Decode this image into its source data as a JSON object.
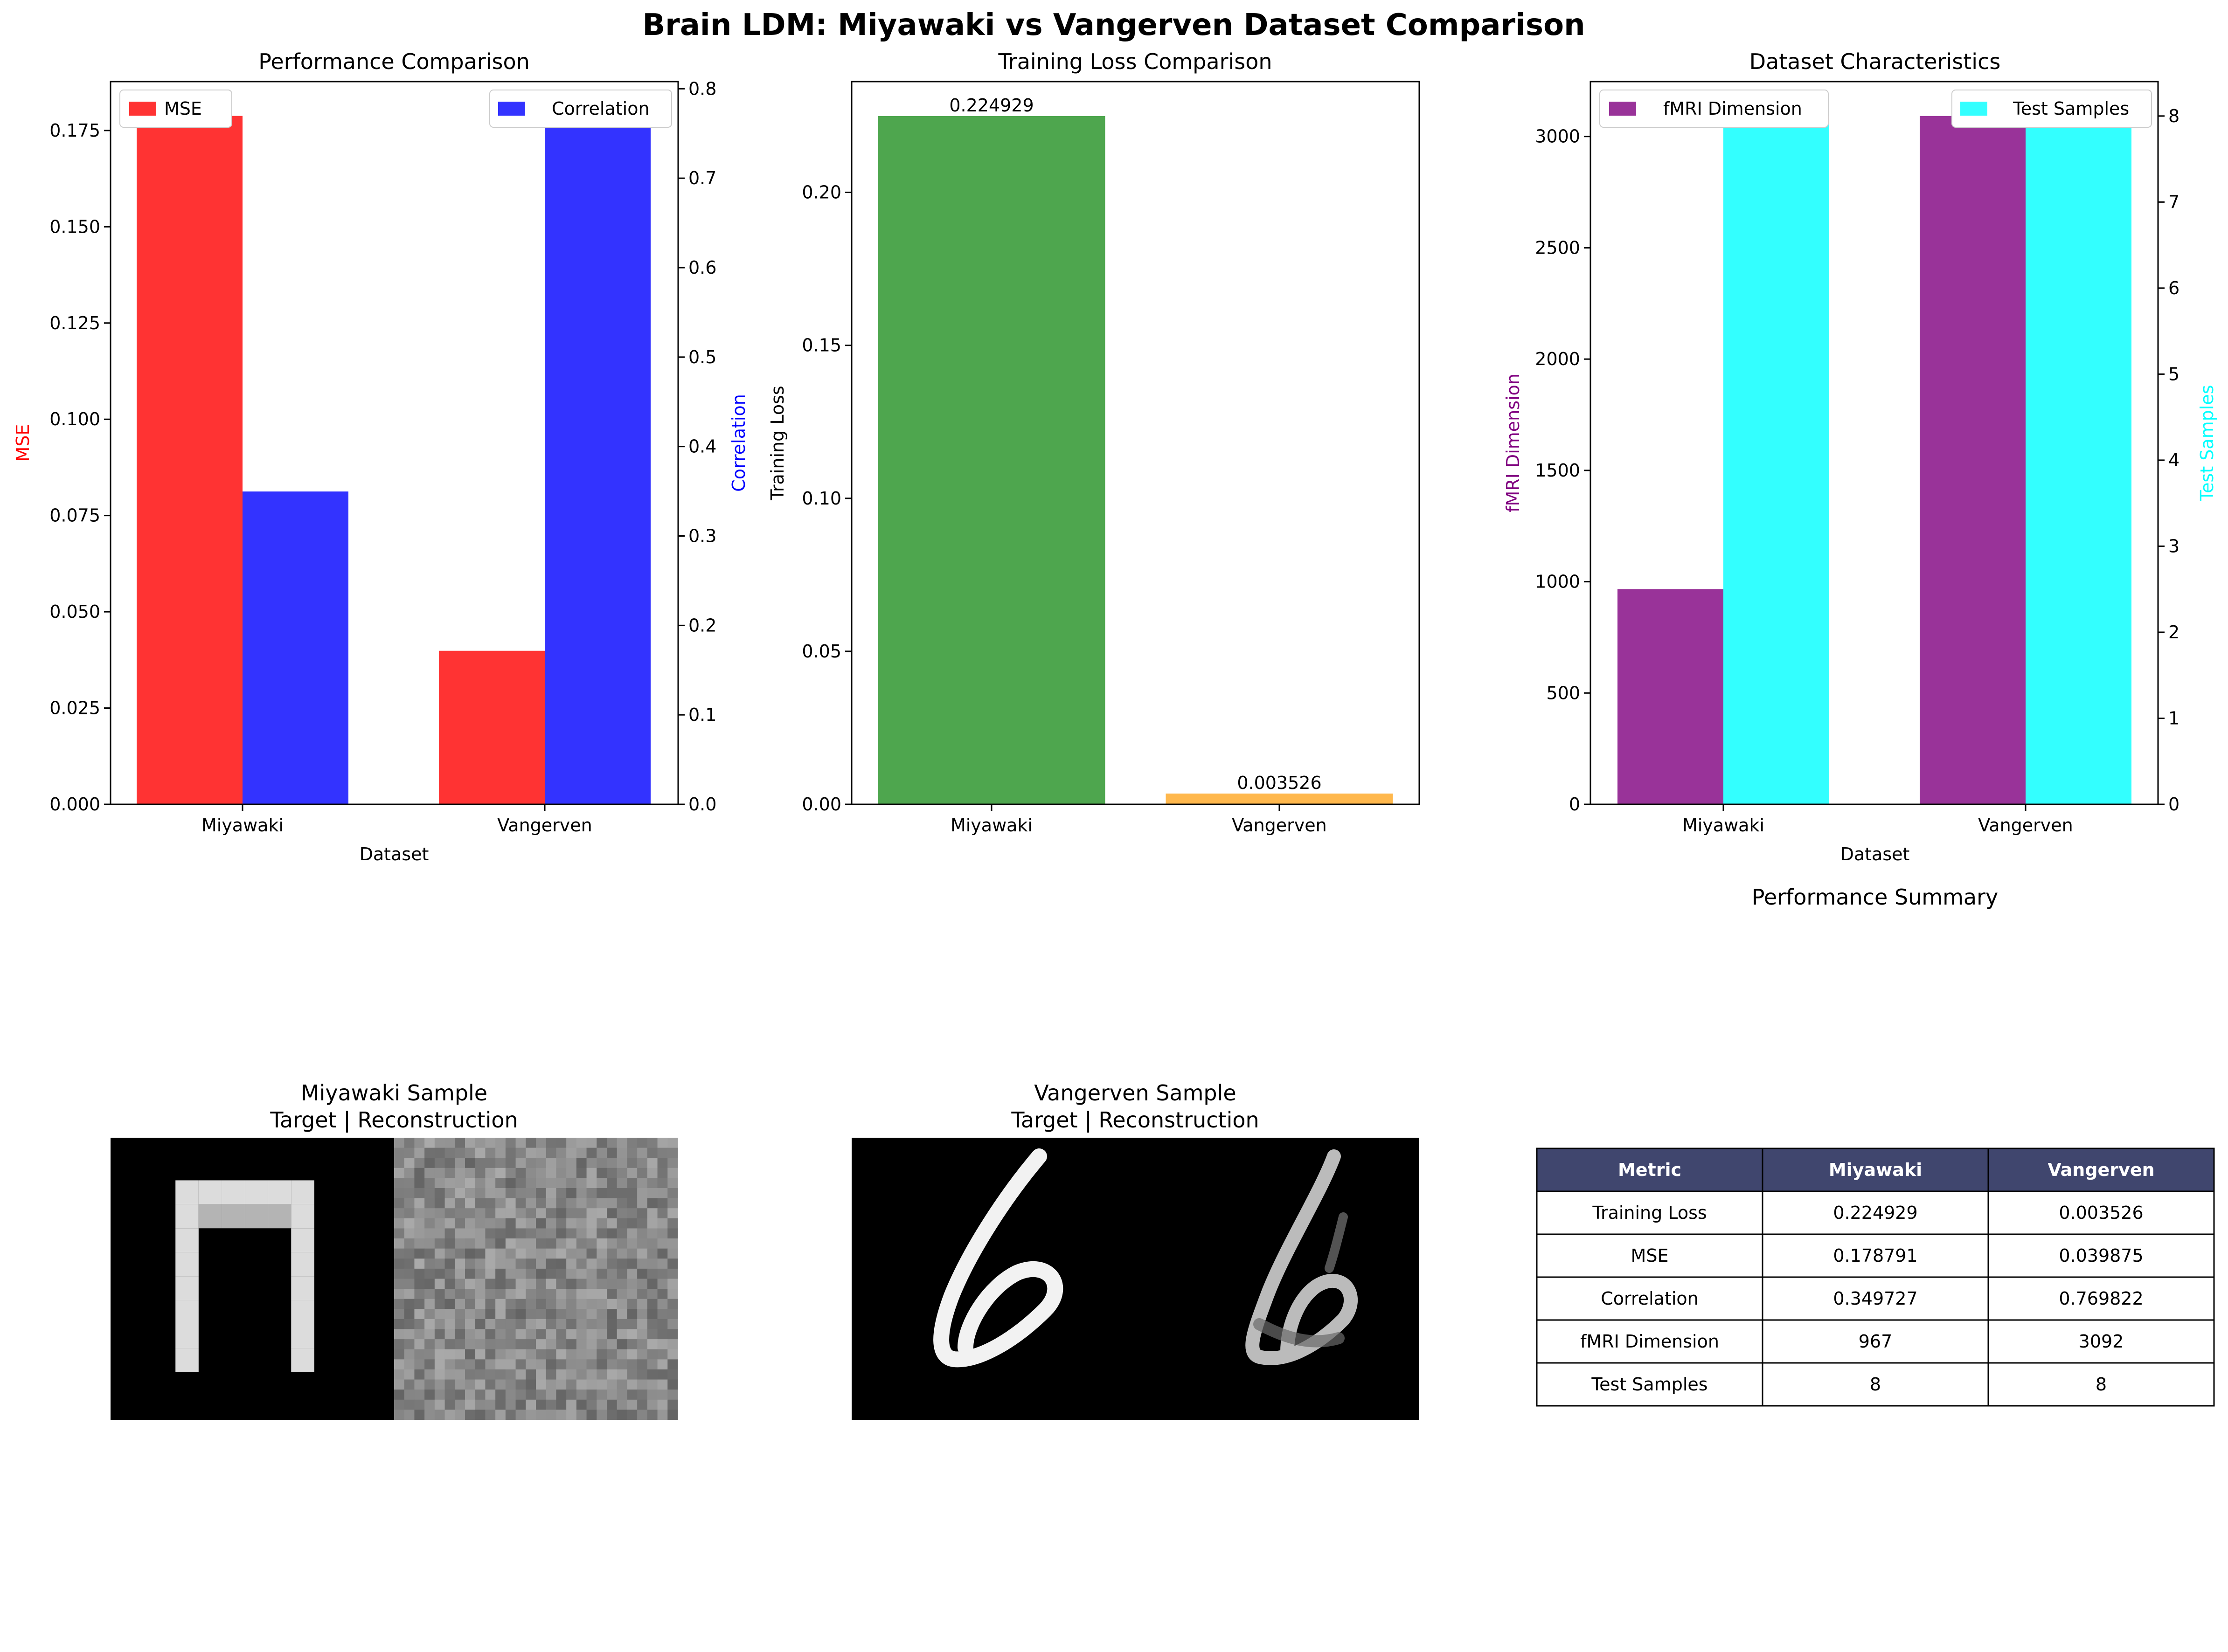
{
  "figure": {
    "title": "Brain LDM: Miyawaki vs Vangerven Dataset Comparison"
  },
  "chart_data": [
    {
      "type": "bar",
      "title": "Performance Comparison",
      "xlabel": "Dataset",
      "categories": [
        "Miyawaki",
        "Vangerven"
      ],
      "series": [
        {
          "name": "MSE",
          "axis": "left",
          "values": [
            0.178791,
            0.039875
          ],
          "color": "#ff3333"
        },
        {
          "name": "Correlation",
          "axis": "right",
          "values": [
            0.349727,
            0.769822
          ],
          "color": "#3333ff"
        }
      ],
      "ylabel_left": "MSE",
      "ylabel_right": "Correlation",
      "ylim_left": [
        0,
        0.1877
      ],
      "ylim_right": [
        0,
        0.808
      ],
      "yticks_left": [
        "0.000",
        "0.025",
        "0.050",
        "0.075",
        "0.100",
        "0.125",
        "0.150",
        "0.175"
      ],
      "yticks_right": [
        "0.0",
        "0.1",
        "0.2",
        "0.3",
        "0.4",
        "0.5",
        "0.6",
        "0.7",
        "0.8"
      ],
      "ylabel_left_color": "#ff0000",
      "ylabel_right_color": "#0000ff",
      "legend_left": "upper-left",
      "legend_right": "upper-right"
    },
    {
      "type": "bar",
      "title": "Training Loss Comparison",
      "ylabel": "Training Loss",
      "categories": [
        "Miyawaki",
        "Vangerven"
      ],
      "values": [
        0.224929,
        0.003526
      ],
      "value_labels": [
        "0.224929",
        "0.003526"
      ],
      "colors": [
        "#4ea64e",
        "#ffb84d"
      ],
      "ylim": [
        0,
        0.2362
      ],
      "yticks": [
        "0.00",
        "0.05",
        "0.10",
        "0.15",
        "0.20"
      ]
    },
    {
      "type": "bar",
      "title": "Dataset Characteristics",
      "xlabel": "Dataset",
      "categories": [
        "Miyawaki",
        "Vangerven"
      ],
      "series": [
        {
          "name": "fMRI Dimension",
          "axis": "left",
          "values": [
            967,
            3092
          ],
          "color": "#993399"
        },
        {
          "name": "Test Samples",
          "axis": "right",
          "values": [
            8,
            8
          ],
          "color": "#33ffff"
        }
      ],
      "ylabel_left": "fMRI Dimension",
      "ylabel_right": "Test Samples",
      "ylim_left": [
        0,
        3246.6
      ],
      "ylim_right": [
        0,
        8.4
      ],
      "yticks_left": [
        "0",
        "500",
        "1000",
        "1500",
        "2000",
        "2500",
        "3000"
      ],
      "yticks_right": [
        "0",
        "1",
        "2",
        "3",
        "4",
        "5",
        "6",
        "7",
        "8"
      ],
      "ylabel_left_color": "#800080",
      "ylabel_right_color": "#00ffff",
      "legend_left": "upper-left",
      "legend_right": "upper-right"
    },
    {
      "type": "table",
      "title": "Performance Summary",
      "columns": [
        "Metric",
        "Miyawaki",
        "Vangerven"
      ],
      "rows": [
        [
          "Training Loss",
          "0.224929",
          "0.003526"
        ],
        [
          "MSE",
          "0.178791",
          "0.039875"
        ],
        [
          "Correlation",
          "0.349727",
          "0.769822"
        ],
        [
          "fMRI Dimension",
          "967",
          "3092"
        ],
        [
          "Test Samples",
          "8",
          "8"
        ]
      ],
      "header_color": "#40466e"
    }
  ],
  "samples": [
    {
      "title_line1": "Miyawaki Sample",
      "title_line2": "Target | Reconstruction"
    },
    {
      "title_line1": "Vangerven Sample",
      "title_line2": "Target | Reconstruction"
    }
  ]
}
